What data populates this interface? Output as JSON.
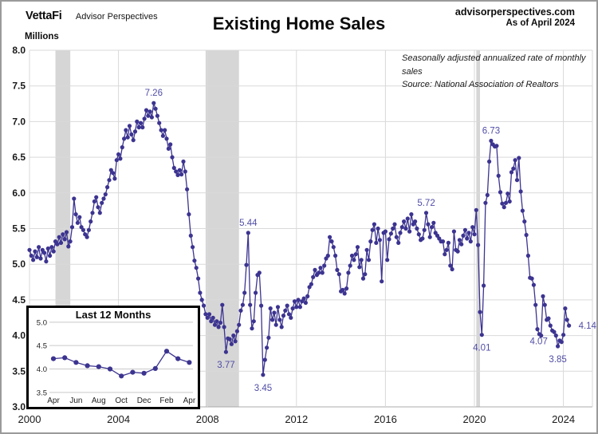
{
  "header": {
    "logo": "VettaFi",
    "logo_sub": "Advisor Perspectives",
    "title": "Existing Home Sales",
    "site": "advisorperspectives.com",
    "as_of": "As of April 2024"
  },
  "notes": {
    "line1": "Seasonally adjusted annualized rate of monthly sales",
    "line2": "Source: National Association of Realtors"
  },
  "colors": {
    "line": "#3c3490",
    "annotation": "#504da6",
    "grid": "#d9d9d9",
    "recession_band": "#d6d6d6",
    "axis": "#ababab",
    "tick_text": "#1a1a1a"
  },
  "chart_data": [
    {
      "type": "line",
      "title": "Existing Home Sales",
      "ylabel": "Millions",
      "ylim": [
        3.0,
        8.0
      ],
      "y_ticks": [
        "8.0",
        "7.5",
        "7.0",
        "6.5",
        "6.0",
        "5.5",
        "5.0",
        "4.5",
        "4.0",
        "3.5",
        "3.0"
      ],
      "x_ticks": [
        2000,
        2004,
        2008,
        2012,
        2016,
        2020,
        2024
      ],
      "start_month": "2000-01",
      "frequency": "monthly",
      "grid": true,
      "legend": "none",
      "values": [
        5.2,
        5.12,
        5.06,
        5.18,
        5.1,
        5.24,
        5.08,
        5.2,
        5.16,
        5.04,
        5.22,
        5.12,
        5.24,
        5.18,
        5.32,
        5.28,
        5.38,
        5.3,
        5.42,
        5.35,
        5.45,
        5.25,
        5.32,
        5.52,
        5.92,
        5.7,
        5.58,
        5.66,
        5.52,
        5.48,
        5.42,
        5.38,
        5.48,
        5.6,
        5.72,
        5.88,
        5.94,
        5.8,
        5.72,
        5.86,
        5.92,
        5.98,
        6.08,
        6.18,
        6.32,
        6.28,
        6.2,
        6.46,
        6.54,
        6.48,
        6.64,
        6.76,
        6.88,
        6.78,
        6.94,
        6.82,
        6.74,
        6.86,
        7.0,
        6.92,
        6.98,
        6.92,
        7.04,
        7.16,
        7.08,
        7.14,
        7.06,
        7.26,
        7.18,
        7.08,
        6.98,
        6.88,
        6.8,
        6.88,
        6.76,
        6.62,
        6.68,
        6.5,
        6.35,
        6.3,
        6.25,
        6.32,
        6.26,
        6.44,
        6.3,
        6.05,
        5.7,
        5.4,
        5.24,
        5.05,
        4.95,
        4.8,
        4.6,
        4.5,
        4.42,
        4.3,
        4.25,
        4.3,
        4.2,
        4.25,
        4.15,
        4.2,
        4.12,
        4.18,
        4.43,
        4.12,
        3.77,
        3.96,
        3.95,
        3.88,
        4.0,
        3.92,
        4.06,
        4.15,
        4.35,
        4.43,
        4.6,
        4.99,
        5.44,
        4.43,
        4.1,
        4.2,
        4.6,
        4.85,
        4.88,
        4.42,
        3.45,
        3.66,
        3.83,
        3.97,
        4.38,
        4.22,
        4.32,
        4.15,
        4.4,
        4.22,
        4.12,
        4.28,
        4.35,
        4.42,
        4.3,
        4.25,
        4.38,
        4.48,
        4.4,
        4.5,
        4.4,
        4.48,
        4.52,
        4.46,
        4.55,
        4.68,
        4.72,
        4.82,
        4.92,
        4.85,
        4.88,
        4.95,
        4.88,
        4.98,
        5.08,
        5.12,
        5.38,
        5.32,
        5.24,
        5.12,
        4.92,
        4.86,
        4.62,
        4.64,
        4.59,
        4.66,
        4.88,
        4.98,
        5.12,
        5.06,
        5.14,
        5.24,
        4.96,
        5.06,
        4.8,
        4.86,
        5.2,
        5.06,
        5.32,
        5.48,
        5.56,
        5.3,
        5.5,
        5.34,
        4.76,
        5.44,
        5.46,
        5.06,
        5.35,
        5.43,
        5.5,
        5.56,
        5.38,
        5.3,
        5.44,
        5.52,
        5.6,
        5.5,
        5.64,
        5.46,
        5.7,
        5.56,
        5.6,
        5.5,
        5.42,
        5.34,
        5.36,
        5.48,
        5.72,
        5.56,
        5.38,
        5.52,
        5.58,
        5.44,
        5.4,
        5.36,
        5.32,
        5.32,
        5.14,
        5.2,
        5.3,
        4.98,
        4.93,
        5.46,
        5.2,
        5.18,
        5.34,
        5.28,
        5.4,
        5.48,
        5.36,
        5.44,
        5.32,
        5.52,
        5.42,
        5.76,
        5.27,
        4.33,
        4.01,
        4.7,
        5.86,
        5.97,
        6.44,
        6.73,
        6.68,
        6.65,
        6.66,
        6.24,
        6.01,
        5.85,
        5.8,
        5.86,
        5.99,
        5.88,
        6.29,
        6.34,
        6.46,
        6.18,
        6.49,
        6.02,
        5.75,
        5.6,
        5.41,
        5.12,
        4.81,
        4.8,
        4.71,
        4.43,
        4.09,
        4.02,
        4.0,
        4.55,
        4.43,
        4.22,
        4.24,
        4.14,
        4.07,
        4.05,
        4.0,
        3.85,
        3.93,
        3.91,
        4.01,
        4.38,
        4.22,
        4.14
      ],
      "recessions": [
        {
          "start_index": 14,
          "end_index": 22
        },
        {
          "start_index": 95,
          "end_index": 113
        },
        {
          "start_index": 241,
          "end_index": 243
        }
      ],
      "annotations": [
        {
          "label": "7.26",
          "month_index": 67,
          "position": "above"
        },
        {
          "label": "3.77",
          "month_index": 106,
          "position": "below"
        },
        {
          "label": "5.44",
          "month_index": 118,
          "position": "above"
        },
        {
          "label": "3.45",
          "month_index": 126,
          "position": "below"
        },
        {
          "label": "5.72",
          "month_index": 214,
          "position": "above"
        },
        {
          "label": "4.01",
          "month_index": 244,
          "position": "below"
        },
        {
          "label": "6.73",
          "month_index": 249,
          "position": "above"
        },
        {
          "label": "4.07",
          "month_index": 282,
          "position": "below-left"
        },
        {
          "label": "3.85",
          "month_index": 285,
          "position": "below"
        },
        {
          "label": "4.14",
          "month_index": 291,
          "position": "right"
        }
      ]
    },
    {
      "type": "line",
      "title": "Last 12 Months",
      "ylim": [
        3.5,
        5.0
      ],
      "y_ticks": [
        "5.0",
        "4.5",
        "4.0",
        "3.5"
      ],
      "x_labels": [
        "Apr",
        "Jun",
        "Aug",
        "Oct",
        "Dec",
        "Feb",
        "Apr"
      ],
      "months": [
        "Apr",
        "May",
        "Jun",
        "Jul",
        "Aug",
        "Sep",
        "Oct",
        "Nov",
        "Dec",
        "Jan",
        "Feb",
        "Mar",
        "Apr"
      ],
      "values": [
        4.22,
        4.24,
        4.14,
        4.07,
        4.05,
        4.0,
        3.85,
        3.93,
        3.91,
        4.01,
        4.38,
        4.22,
        4.14
      ],
      "grid": true,
      "legend": "none"
    }
  ]
}
